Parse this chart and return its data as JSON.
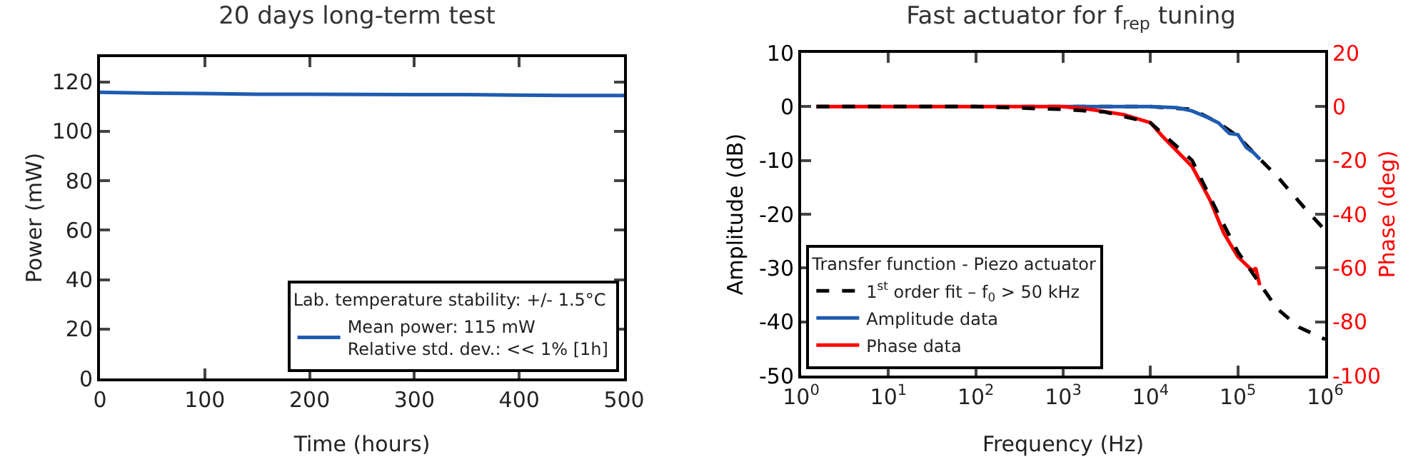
{
  "chart_data": [
    {
      "type": "line",
      "title": "20 days long-term test",
      "xlabel": "Time (hours)",
      "ylabel": "Power (mW)",
      "legend_title": "Lab. temperature stability: +/- 1.5°C",
      "x": [
        0,
        50,
        100,
        150,
        200,
        250,
        300,
        350,
        400,
        450,
        500
      ],
      "series": [
        {
          "name": "Mean power: 115 mW\nRelative std. dev.: << 1% [1h]",
          "color": "#1f5bb0",
          "values": [
            115.8,
            115.4,
            115.3,
            115.0,
            115.0,
            114.9,
            114.8,
            114.8,
            114.6,
            114.5,
            114.5
          ]
        }
      ],
      "xlim": [
        0,
        500
      ],
      "xticks": [
        0,
        100,
        200,
        300,
        400,
        500
      ],
      "ylim": [
        0,
        130
      ],
      "yticks": [
        0,
        20,
        40,
        60,
        80,
        100,
        120
      ],
      "grid": false,
      "legend": "bottom right",
      "marker": "none",
      "line_style": "solid"
    },
    {
      "type": "line",
      "title": "Fast actuator for f$_{rep}$ tuning",
      "xlabel": "Frequency (Hz)",
      "ylabel": "Amplitude (dB)",
      "y2label": "Phase (deg)",
      "legend_title": "Transfer function - Piezo actuator",
      "log": "x",
      "series": [
        {
          "name": "1$^{st}$ order fit – f$_{0}$ > 50 kHz",
          "color": "#000000",
          "line_style": "dashed",
          "x": [
            1.5,
            10,
            100,
            1000,
            10000,
            30000,
            60000,
            100000,
            180000,
            280000,
            600000,
            1000000
          ],
          "values": [
            0,
            0,
            0,
            0,
            0,
            -0.5,
            -3,
            -5.5,
            -9.8,
            -12.9,
            -19.1,
            -23
          ]
        },
        {
          "name": "Amplitude data",
          "color": "#1f5bb0",
          "x": [
            1000,
            3000,
            10000,
            20000,
            30000,
            45000,
            60000,
            80000,
            100000,
            125000,
            150000,
            180000
          ],
          "values": [
            0,
            0,
            0,
            -0.2,
            -0.8,
            -2,
            -3,
            -5,
            -5.2,
            -7.6,
            -8.5,
            -9.8
          ]
        },
        {
          "name": "Phase data",
          "color": "#ff0000",
          "axis": "y2",
          "x": [
            1.5,
            10,
            100,
            1000,
            2000,
            5000,
            10000,
            13500,
            30000,
            48000,
            69000,
            100000,
            148000,
            160000,
            178000
          ],
          "values": [
            0,
            0,
            0,
            0,
            -1,
            -3,
            -6,
            -10.8,
            -22.3,
            -34.7,
            -47,
            -55.8,
            -61.1,
            -60,
            -66.4
          ]
        },
        {
          "color": "#000000",
          "line_style": "dashed",
          "axis": "y2",
          "x": [
            1.5,
            10,
            100,
            1000,
            3000,
            10000,
            30000,
            60000,
            100000,
            180000,
            280000,
            500000,
            1000000
          ],
          "values": [
            0,
            0,
            0,
            -1,
            -2,
            -6,
            -20,
            -40,
            -54,
            -66,
            -75,
            -82,
            -86.5
          ]
        }
      ],
      "xlim": [
        1,
        1000000
      ],
      "xticks": [
        {
          "value": 1,
          "label": "10$^{0}$"
        },
        {
          "value": 10,
          "label": "10$^{1}$"
        },
        {
          "value": 100,
          "label": "10$^{2}$"
        },
        {
          "value": 1000,
          "label": "10$^{3}$"
        },
        {
          "value": 10000,
          "label": "10$^{4}$"
        },
        {
          "value": 100000,
          "label": "10$^{5}$"
        },
        {
          "value": 1000000,
          "label": "10$^{6}$"
        }
      ],
      "ylim": [
        -50,
        10
      ],
      "yticks": [
        -50,
        -40,
        -30,
        -20,
        -10,
        0,
        10
      ],
      "y2lim": [
        -100,
        20
      ],
      "y2ticks": [
        -100,
        -80,
        -60,
        -40,
        -20,
        0,
        20
      ],
      "grid": false,
      "legend": "bottom left",
      "marker": "none",
      "line_style": "solid"
    }
  ]
}
